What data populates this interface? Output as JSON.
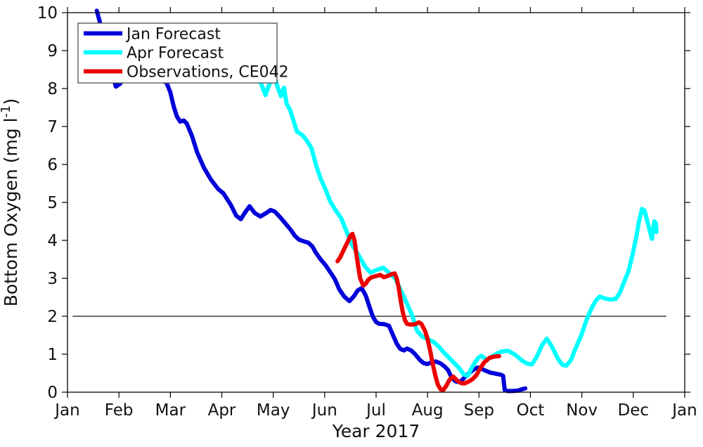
{
  "figure": {
    "xlabel": "Year 2017",
    "ylabel_pre": "Bottom Oxygen (mg l",
    "ylabel_sup": "-1",
    "ylabel_post": ")",
    "background": "#ffffff",
    "axis_color": "#000000"
  },
  "chart_data": {
    "type": "line",
    "title": "",
    "xlabel": "Year 2017",
    "ylabel": "Bottom Oxygen (mg l^-1)",
    "x_axis": {
      "tick_labels": [
        "Jan",
        "Feb",
        "Mar",
        "Apr",
        "May",
        "Jun",
        "Jul",
        "Aug",
        "Sep",
        "Oct",
        "Nov",
        "Dec",
        "Jan"
      ],
      "range_months": [
        0,
        12
      ],
      "grid": false
    },
    "y_axis": {
      "tick_labels": [
        "0",
        "1",
        "2",
        "3",
        "4",
        "5",
        "6",
        "7",
        "8",
        "9",
        "10"
      ],
      "ticks": [
        0,
        1,
        2,
        3,
        4,
        5,
        6,
        7,
        8,
        9,
        10
      ],
      "range": [
        0,
        10
      ],
      "grid": false
    },
    "reference_line": {
      "value": 2.0,
      "x_start_month": 0.1,
      "x_end_month": 11.64,
      "color": "#3c3c3c",
      "width": 1.6
    },
    "legend": {
      "position": "top-left"
    },
    "series": [
      {
        "name": "Jan Forecast",
        "color": "#0000d9",
        "width": 6,
        "points": [
          [
            0.57,
            10.05
          ],
          [
            0.63,
            9.75
          ],
          [
            0.7,
            9.4
          ],
          [
            0.78,
            8.95
          ],
          [
            0.86,
            8.45
          ],
          [
            0.94,
            8.05
          ],
          [
            1.02,
            8.12
          ],
          [
            1.12,
            8.3
          ],
          [
            1.3,
            8.4
          ],
          [
            1.5,
            8.4
          ],
          [
            1.68,
            8.32
          ],
          [
            1.85,
            8.22
          ],
          [
            1.93,
            8.14
          ],
          [
            2.0,
            7.9
          ],
          [
            2.07,
            7.5
          ],
          [
            2.13,
            7.26
          ],
          [
            2.19,
            7.13
          ],
          [
            2.26,
            7.16
          ],
          [
            2.32,
            7.08
          ],
          [
            2.42,
            6.75
          ],
          [
            2.52,
            6.32
          ],
          [
            2.65,
            5.92
          ],
          [
            2.79,
            5.6
          ],
          [
            2.93,
            5.35
          ],
          [
            3.03,
            5.24
          ],
          [
            3.17,
            4.95
          ],
          [
            3.28,
            4.65
          ],
          [
            3.37,
            4.56
          ],
          [
            3.45,
            4.73
          ],
          [
            3.54,
            4.9
          ],
          [
            3.64,
            4.72
          ],
          [
            3.75,
            4.63
          ],
          [
            3.85,
            4.71
          ],
          [
            3.95,
            4.8
          ],
          [
            4.03,
            4.76
          ],
          [
            4.14,
            4.6
          ],
          [
            4.24,
            4.44
          ],
          [
            4.34,
            4.28
          ],
          [
            4.42,
            4.12
          ],
          [
            4.5,
            4.02
          ],
          [
            4.58,
            3.98
          ],
          [
            4.68,
            3.94
          ],
          [
            4.76,
            3.84
          ],
          [
            4.83,
            3.67
          ],
          [
            4.92,
            3.5
          ],
          [
            5.02,
            3.34
          ],
          [
            5.12,
            3.14
          ],
          [
            5.2,
            2.97
          ],
          [
            5.28,
            2.72
          ],
          [
            5.38,
            2.52
          ],
          [
            5.48,
            2.4
          ],
          [
            5.57,
            2.53
          ],
          [
            5.64,
            2.68
          ],
          [
            5.72,
            2.74
          ],
          [
            5.8,
            2.54
          ],
          [
            5.87,
            2.25
          ],
          [
            5.94,
            1.98
          ],
          [
            6.0,
            1.85
          ],
          [
            6.06,
            1.8
          ],
          [
            6.16,
            1.79
          ],
          [
            6.25,
            1.75
          ],
          [
            6.33,
            1.5
          ],
          [
            6.4,
            1.28
          ],
          [
            6.47,
            1.14
          ],
          [
            6.54,
            1.1
          ],
          [
            6.6,
            1.15
          ],
          [
            6.68,
            1.1
          ],
          [
            6.76,
            1.0
          ],
          [
            6.85,
            0.85
          ],
          [
            6.92,
            0.77
          ],
          [
            6.99,
            0.74
          ],
          [
            7.07,
            0.78
          ],
          [
            7.16,
            0.81
          ],
          [
            7.25,
            0.76
          ],
          [
            7.33,
            0.68
          ],
          [
            7.4,
            0.58
          ],
          [
            7.47,
            0.38
          ],
          [
            7.54,
            0.29
          ],
          [
            7.58,
            0.27
          ],
          [
            7.66,
            0.3
          ],
          [
            7.74,
            0.42
          ],
          [
            7.82,
            0.52
          ],
          [
            7.91,
            0.61
          ],
          [
            7.98,
            0.65
          ],
          [
            8.06,
            0.61
          ],
          [
            8.12,
            0.57
          ],
          [
            8.21,
            0.52
          ],
          [
            8.35,
            0.48
          ],
          [
            8.43,
            0.46
          ],
          [
            8.47,
            0.43
          ],
          [
            8.5,
            0.06
          ],
          [
            8.56,
            0.03
          ],
          [
            8.66,
            0.03
          ],
          [
            8.76,
            0.04
          ],
          [
            8.84,
            0.08
          ],
          [
            8.9,
            0.1
          ]
        ]
      },
      {
        "name": "Apr Forecast",
        "color": "#00ffff",
        "width": 6,
        "points": [
          [
            2.95,
            9.45
          ],
          [
            3.33,
            8.9
          ],
          [
            3.61,
            8.45
          ],
          [
            3.76,
            8.14
          ],
          [
            3.85,
            7.83
          ],
          [
            3.92,
            8.1
          ],
          [
            3.99,
            8.28
          ],
          [
            4.05,
            8.22
          ],
          [
            4.07,
            8.1
          ],
          [
            4.15,
            7.8
          ],
          [
            4.21,
            8.02
          ],
          [
            4.26,
            7.6
          ],
          [
            4.33,
            7.43
          ],
          [
            4.46,
            6.87
          ],
          [
            4.56,
            6.78
          ],
          [
            4.63,
            6.67
          ],
          [
            4.74,
            6.44
          ],
          [
            4.84,
            5.95
          ],
          [
            4.93,
            5.6
          ],
          [
            5.0,
            5.4
          ],
          [
            5.11,
            5.02
          ],
          [
            5.22,
            4.78
          ],
          [
            5.32,
            4.59
          ],
          [
            5.43,
            4.22
          ],
          [
            5.52,
            3.91
          ],
          [
            5.66,
            3.61
          ],
          [
            5.79,
            3.3
          ],
          [
            5.89,
            3.15
          ],
          [
            6.01,
            3.22
          ],
          [
            6.14,
            3.28
          ],
          [
            6.25,
            3.15
          ],
          [
            6.37,
            3.0
          ],
          [
            6.51,
            2.6
          ],
          [
            6.61,
            2.3
          ],
          [
            6.71,
            2.0
          ],
          [
            6.79,
            1.63
          ],
          [
            6.89,
            1.47
          ],
          [
            7.0,
            1.4
          ],
          [
            7.11,
            1.33
          ],
          [
            7.22,
            1.2
          ],
          [
            7.3,
            1.07
          ],
          [
            7.43,
            0.89
          ],
          [
            7.61,
            0.64
          ],
          [
            7.71,
            0.46
          ],
          [
            7.78,
            0.43
          ],
          [
            7.87,
            0.67
          ],
          [
            7.98,
            0.9
          ],
          [
            8.05,
            0.96
          ],
          [
            8.15,
            0.85
          ],
          [
            8.3,
            0.98
          ],
          [
            8.43,
            1.07
          ],
          [
            8.57,
            1.09
          ],
          [
            8.71,
            0.98
          ],
          [
            8.84,
            0.83
          ],
          [
            8.94,
            0.75
          ],
          [
            9.03,
            0.73
          ],
          [
            9.13,
            0.95
          ],
          [
            9.23,
            1.25
          ],
          [
            9.32,
            1.41
          ],
          [
            9.42,
            1.2
          ],
          [
            9.53,
            0.89
          ],
          [
            9.62,
            0.72
          ],
          [
            9.7,
            0.7
          ],
          [
            9.79,
            0.85
          ],
          [
            9.87,
            1.13
          ],
          [
            9.99,
            1.5
          ],
          [
            10.1,
            1.94
          ],
          [
            10.2,
            2.24
          ],
          [
            10.28,
            2.43
          ],
          [
            10.35,
            2.52
          ],
          [
            10.44,
            2.47
          ],
          [
            10.55,
            2.44
          ],
          [
            10.66,
            2.46
          ],
          [
            10.74,
            2.62
          ],
          [
            10.82,
            2.9
          ],
          [
            10.91,
            3.2
          ],
          [
            10.99,
            3.65
          ],
          [
            11.06,
            4.1
          ],
          [
            11.11,
            4.5
          ],
          [
            11.17,
            4.83
          ],
          [
            11.22,
            4.78
          ],
          [
            11.29,
            4.41
          ],
          [
            11.36,
            4.04
          ],
          [
            11.41,
            4.5
          ],
          [
            11.44,
            4.45
          ],
          [
            11.45,
            4.22
          ]
        ]
      },
      {
        "name": "Observations, CE042",
        "color": "#ec0000",
        "width": 6,
        "points": [
          [
            5.25,
            3.45
          ],
          [
            5.3,
            3.55
          ],
          [
            5.36,
            3.72
          ],
          [
            5.45,
            3.97
          ],
          [
            5.5,
            4.12
          ],
          [
            5.54,
            4.17
          ],
          [
            5.58,
            4.0
          ],
          [
            5.62,
            3.6
          ],
          [
            5.66,
            3.25
          ],
          [
            5.69,
            3.0
          ],
          [
            5.75,
            2.81
          ],
          [
            5.8,
            2.86
          ],
          [
            5.84,
            2.95
          ],
          [
            5.9,
            3.02
          ],
          [
            6.0,
            3.06
          ],
          [
            6.08,
            3.09
          ],
          [
            6.15,
            3.03
          ],
          [
            6.22,
            3.06
          ],
          [
            6.3,
            3.11
          ],
          [
            6.36,
            3.13
          ],
          [
            6.4,
            3.0
          ],
          [
            6.44,
            2.74
          ],
          [
            6.48,
            2.4
          ],
          [
            6.52,
            2.1
          ],
          [
            6.56,
            1.9
          ],
          [
            6.6,
            1.8
          ],
          [
            6.68,
            1.78
          ],
          [
            6.76,
            1.79
          ],
          [
            6.83,
            1.84
          ],
          [
            6.88,
            1.8
          ],
          [
            6.95,
            1.62
          ],
          [
            7.0,
            1.4
          ],
          [
            7.05,
            1.1
          ],
          [
            7.1,
            0.75
          ],
          [
            7.15,
            0.45
          ],
          [
            7.2,
            0.2
          ],
          [
            7.25,
            0.08
          ],
          [
            7.3,
            0.05
          ],
          [
            7.36,
            0.16
          ],
          [
            7.43,
            0.33
          ],
          [
            7.5,
            0.41
          ],
          [
            7.58,
            0.3
          ],
          [
            7.65,
            0.24
          ],
          [
            7.72,
            0.23
          ],
          [
            7.8,
            0.28
          ],
          [
            7.88,
            0.35
          ],
          [
            7.95,
            0.45
          ],
          [
            8.02,
            0.62
          ],
          [
            8.1,
            0.78
          ],
          [
            8.2,
            0.9
          ],
          [
            8.3,
            0.94
          ],
          [
            8.39,
            0.95
          ]
        ]
      }
    ]
  }
}
